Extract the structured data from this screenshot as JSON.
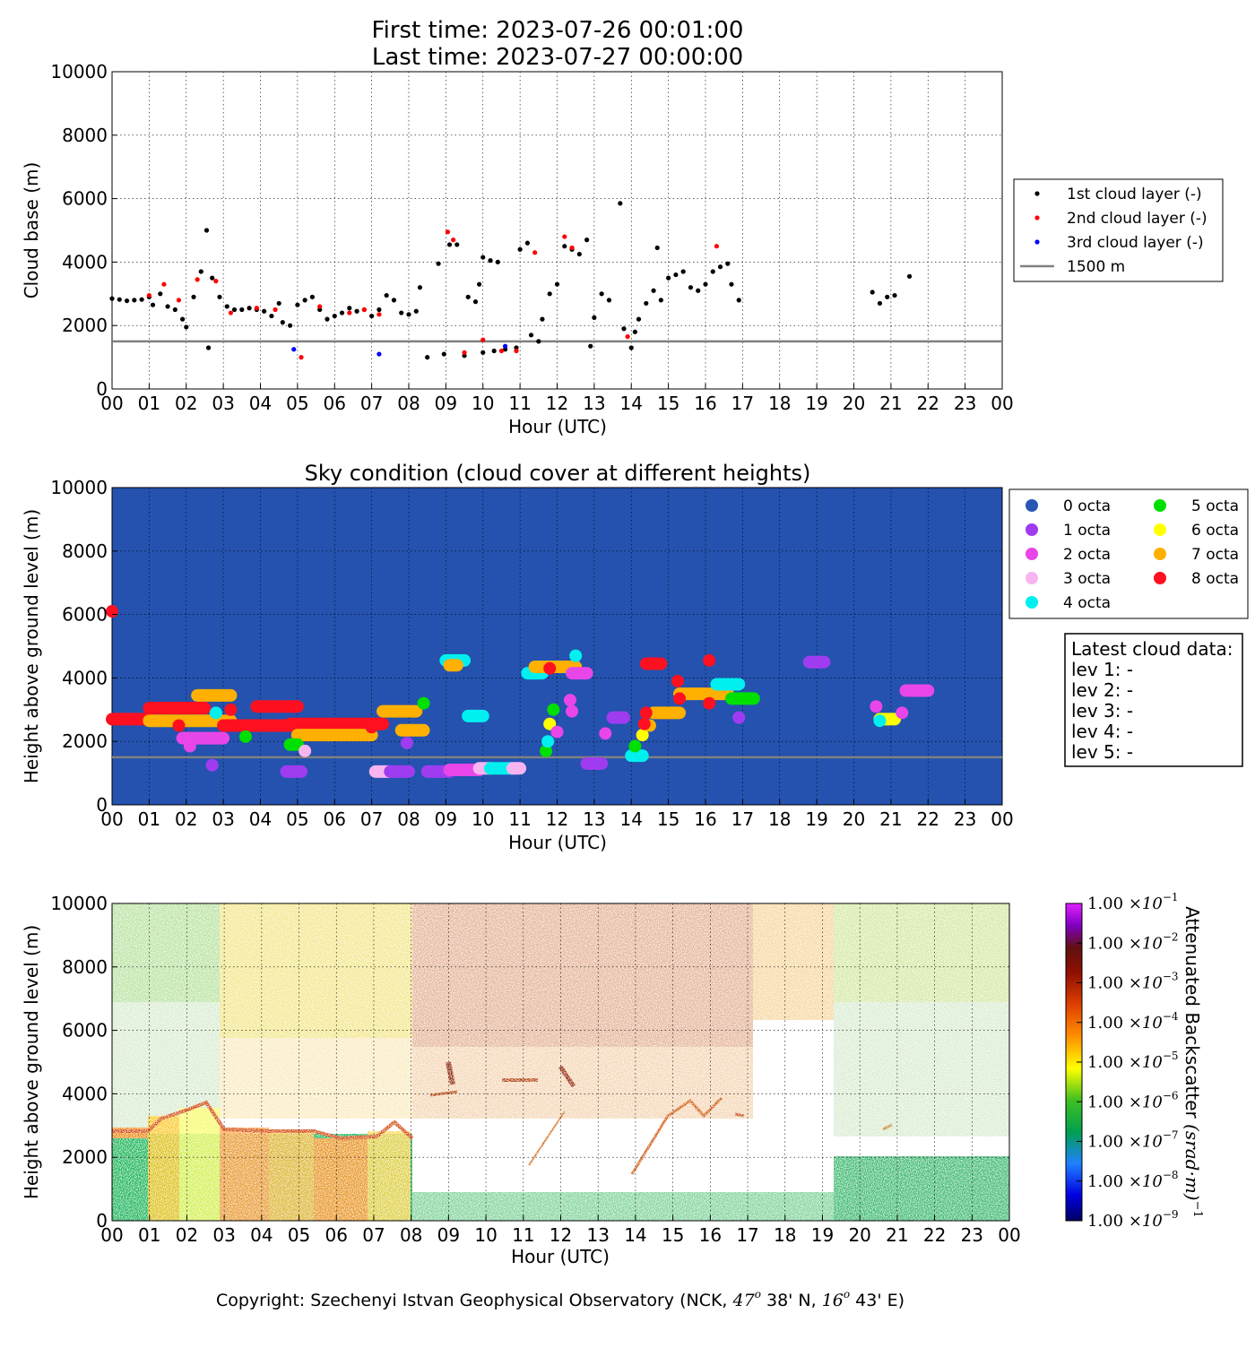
{
  "header": {
    "first_time": "First time: 2023-07-26 00:01:00",
    "last_time": "Last time: 2023-07-27 00:00:00"
  },
  "hour_ticks": [
    "00",
    "01",
    "02",
    "03",
    "04",
    "05",
    "06",
    "07",
    "08",
    "09",
    "10",
    "11",
    "12",
    "13",
    "14",
    "15",
    "16",
    "17",
    "18",
    "19",
    "20",
    "21",
    "22",
    "23",
    "00"
  ],
  "colors": {
    "layer1": "#000000",
    "layer2": "#ff0000",
    "layer3": "#0000ff",
    "ref_line": "#808080",
    "sky_bg": "#2452ae",
    "octa": [
      "#2756b4",
      "#a03cf0",
      "#e846e8",
      "#f8b4f0",
      "#00f0f0",
      "#00e000",
      "#ffff00",
      "#ffb000",
      "#ff1020"
    ]
  },
  "chart_data": [
    {
      "type": "scatter",
      "xlabel": "Hour (UTC)",
      "ylabel": "Cloud base (m)",
      "ylim": [
        0,
        10000
      ],
      "yticks": [
        "0",
        "2000",
        "4000",
        "6000",
        "8000",
        "10000"
      ],
      "grid": true,
      "legend_position": "right",
      "reference_line": {
        "name": "1500 m",
        "y": 1500
      },
      "series": [
        {
          "name": "1st cloud layer (-)",
          "points": [
            [
              0.0,
              2850
            ],
            [
              0.2,
              2820
            ],
            [
              0.4,
              2780
            ],
            [
              0.6,
              2800
            ],
            [
              0.8,
              2820
            ],
            [
              1.0,
              2900
            ],
            [
              1.1,
              2650
            ],
            [
              1.3,
              3000
            ],
            [
              1.5,
              2600
            ],
            [
              1.7,
              2500
            ],
            [
              1.9,
              2200
            ],
            [
              2.0,
              1950
            ],
            [
              2.2,
              2900
            ],
            [
              2.4,
              3700
            ],
            [
              2.55,
              5000
            ],
            [
              2.6,
              1300
            ],
            [
              2.7,
              3500
            ],
            [
              2.9,
              2900
            ],
            [
              3.1,
              2600
            ],
            [
              3.3,
              2500
            ],
            [
              3.5,
              2500
            ],
            [
              3.7,
              2550
            ],
            [
              3.9,
              2500
            ],
            [
              4.1,
              2450
            ],
            [
              4.3,
              2300
            ],
            [
              4.5,
              2700
            ],
            [
              4.6,
              2100
            ],
            [
              4.8,
              2000
            ],
            [
              5.0,
              2650
            ],
            [
              5.2,
              2800
            ],
            [
              5.4,
              2900
            ],
            [
              5.6,
              2500
            ],
            [
              5.8,
              2200
            ],
            [
              6.0,
              2300
            ],
            [
              6.2,
              2400
            ],
            [
              6.4,
              2550
            ],
            [
              6.6,
              2450
            ],
            [
              6.8,
              2500
            ],
            [
              7.0,
              2300
            ],
            [
              7.2,
              2500
            ],
            [
              7.4,
              2950
            ],
            [
              7.6,
              2800
            ],
            [
              7.8,
              2400
            ],
            [
              8.0,
              2350
            ],
            [
              8.2,
              2450
            ],
            [
              8.3,
              3200
            ],
            [
              8.5,
              1000
            ],
            [
              8.8,
              3950
            ],
            [
              8.95,
              1100
            ],
            [
              9.1,
              4550
            ],
            [
              9.3,
              4550
            ],
            [
              9.5,
              1050
            ],
            [
              9.6,
              2900
            ],
            [
              9.8,
              2750
            ],
            [
              9.9,
              3300
            ],
            [
              10.0,
              4150
            ],
            [
              10.2,
              4050
            ],
            [
              10.4,
              4000
            ],
            [
              10.0,
              1150
            ],
            [
              10.3,
              1200
            ],
            [
              10.6,
              1250
            ],
            [
              10.9,
              1300
            ],
            [
              11.0,
              4400
            ],
            [
              11.2,
              4600
            ],
            [
              11.3,
              1700
            ],
            [
              11.5,
              1500
            ],
            [
              11.6,
              2200
            ],
            [
              11.8,
              3000
            ],
            [
              12.0,
              3300
            ],
            [
              12.2,
              4500
            ],
            [
              12.4,
              4400
            ],
            [
              12.6,
              4250
            ],
            [
              12.8,
              4700
            ],
            [
              12.9,
              1350
            ],
            [
              13.0,
              2250
            ],
            [
              13.2,
              3000
            ],
            [
              13.4,
              2800
            ],
            [
              13.7,
              5850
            ],
            [
              13.8,
              1900
            ],
            [
              14.0,
              1300
            ],
            [
              14.1,
              1800
            ],
            [
              14.2,
              2200
            ],
            [
              14.4,
              2700
            ],
            [
              14.6,
              3100
            ],
            [
              14.7,
              4450
            ],
            [
              14.8,
              2800
            ],
            [
              15.0,
              3500
            ],
            [
              15.2,
              3600
            ],
            [
              15.4,
              3700
            ],
            [
              15.6,
              3200
            ],
            [
              15.8,
              3100
            ],
            [
              16.0,
              3300
            ],
            [
              16.2,
              3700
            ],
            [
              16.4,
              3850
            ],
            [
              16.6,
              3950
            ],
            [
              16.7,
              3300
            ],
            [
              16.9,
              2800
            ],
            [
              20.5,
              3050
            ],
            [
              20.7,
              2700
            ],
            [
              20.9,
              2900
            ],
            [
              21.1,
              2950
            ],
            [
              21.5,
              3550
            ]
          ]
        },
        {
          "name": "2nd cloud layer (-)",
          "points": [
            [
              1.0,
              2950
            ],
            [
              1.4,
              3300
            ],
            [
              1.8,
              2800
            ],
            [
              2.3,
              3450
            ],
            [
              2.8,
              3400
            ],
            [
              3.2,
              2400
            ],
            [
              3.9,
              2550
            ],
            [
              4.4,
              2500
            ],
            [
              5.1,
              1000
            ],
            [
              5.6,
              2600
            ],
            [
              6.4,
              2400
            ],
            [
              6.8,
              2500
            ],
            [
              7.2,
              2350
            ],
            [
              9.05,
              4950
            ],
            [
              9.2,
              4700
            ],
            [
              9.5,
              1150
            ],
            [
              10.0,
              1550
            ],
            [
              10.5,
              1200
            ],
            [
              10.9,
              1200
            ],
            [
              11.4,
              4300
            ],
            [
              12.2,
              4800
            ],
            [
              12.4,
              4450
            ],
            [
              13.9,
              1650
            ],
            [
              16.3,
              4500
            ]
          ]
        },
        {
          "name": "3rd cloud layer (-)",
          "points": [
            [
              4.9,
              1250
            ],
            [
              7.2,
              1100
            ],
            [
              10.6,
              1350
            ]
          ]
        }
      ]
    },
    {
      "type": "scatter",
      "title": "Sky condition (cloud cover at different heights)",
      "xlabel": "Hour (UTC)",
      "ylabel": "Height above ground level (m)",
      "ylim": [
        0,
        10000
      ],
      "yticks": [
        "0",
        "2000",
        "4000",
        "6000",
        "8000",
        "10000"
      ],
      "grid": true,
      "legend_position": "right",
      "legend": [
        "0 octa",
        "1 octa",
        "2 octa",
        "3 octa",
        "4 octa",
        "5 octa",
        "6 octa",
        "7 octa",
        "8 octa"
      ],
      "reference_line": {
        "y": 1500
      },
      "segments": [
        {
          "octa": 8,
          "x": [
            0.0,
            1.0
          ],
          "y": 2700
        },
        {
          "octa": 8,
          "x": [
            1.0,
            2.5
          ],
          "y": 3050
        },
        {
          "octa": 7,
          "x": [
            1.0,
            3.2
          ],
          "y": 2650
        },
        {
          "octa": 7,
          "x": [
            2.3,
            3.2
          ],
          "y": 3450
        },
        {
          "octa": 8,
          "x": [
            3.0,
            5.0
          ],
          "y": 2500
        },
        {
          "octa": 8,
          "x": [
            3.9,
            5.0
          ],
          "y": 3100
        },
        {
          "octa": 8,
          "x": [
            4.8,
            7.3
          ],
          "y": 2550
        },
        {
          "octa": 7,
          "x": [
            5.0,
            7.0
          ],
          "y": 2200
        },
        {
          "octa": 2,
          "x": [
            1.9,
            3.0
          ],
          "y": 2100
        },
        {
          "octa": 1,
          "x": [
            4.7,
            5.1
          ],
          "y": 1050
        },
        {
          "octa": 5,
          "x": [
            4.8,
            5.0
          ],
          "y": 1900
        },
        {
          "octa": 3,
          "x": [
            7.1,
            7.5
          ],
          "y": 1050
        },
        {
          "octa": 1,
          "x": [
            7.5,
            8.0
          ],
          "y": 1050
        },
        {
          "octa": 7,
          "x": [
            7.3,
            8.2
          ],
          "y": 2950
        },
        {
          "octa": 7,
          "x": [
            7.8,
            8.4
          ],
          "y": 2350
        },
        {
          "octa": 1,
          "x": [
            8.5,
            9.1
          ],
          "y": 1050
        },
        {
          "octa": 2,
          "x": [
            9.1,
            9.9
          ],
          "y": 1100
        },
        {
          "octa": 3,
          "x": [
            9.9,
            10.2
          ],
          "y": 1150
        },
        {
          "octa": 4,
          "x": [
            10.2,
            10.8
          ],
          "y": 1150
        },
        {
          "octa": 3,
          "x": [
            10.8,
            11.0
          ],
          "y": 1150
        },
        {
          "octa": 4,
          "x": [
            9.0,
            9.5
          ],
          "y": 4550
        },
        {
          "octa": 7,
          "x": [
            9.1,
            9.3
          ],
          "y": 4400
        },
        {
          "octa": 4,
          "x": [
            9.6,
            10.0
          ],
          "y": 2800
        },
        {
          "octa": 4,
          "x": [
            11.2,
            11.6
          ],
          "y": 4150
        },
        {
          "octa": 7,
          "x": [
            11.4,
            12.5
          ],
          "y": 4350
        },
        {
          "octa": 2,
          "x": [
            12.4,
            12.8
          ],
          "y": 4150
        },
        {
          "octa": 1,
          "x": [
            12.8,
            13.2
          ],
          "y": 1300
        },
        {
          "octa": 1,
          "x": [
            13.5,
            13.8
          ],
          "y": 2750
        },
        {
          "octa": 4,
          "x": [
            14.0,
            14.3
          ],
          "y": 1550
        },
        {
          "octa": 8,
          "x": [
            14.4,
            14.8
          ],
          "y": 4450
        },
        {
          "octa": 7,
          "x": [
            14.6,
            15.3
          ],
          "y": 2900
        },
        {
          "octa": 7,
          "x": [
            15.3,
            16.6
          ],
          "y": 3500
        },
        {
          "octa": 4,
          "x": [
            16.3,
            16.9
          ],
          "y": 3800
        },
        {
          "octa": 5,
          "x": [
            16.7,
            17.3
          ],
          "y": 3350
        },
        {
          "octa": 1,
          "x": [
            18.8,
            19.2
          ],
          "y": 4500
        },
        {
          "octa": 6,
          "x": [
            20.7,
            21.1
          ],
          "y": 2700
        },
        {
          "octa": 2,
          "x": [
            21.4,
            22.0
          ],
          "y": 3600
        }
      ],
      "points": [
        {
          "octa": 8,
          "x": 0.0,
          "y": 6100
        },
        {
          "octa": 8,
          "x": 1.8,
          "y": 2500
        },
        {
          "octa": 4,
          "x": 2.8,
          "y": 2900
        },
        {
          "octa": 8,
          "x": 3.2,
          "y": 3000
        },
        {
          "octa": 2,
          "x": 2.1,
          "y": 1850
        },
        {
          "octa": 1,
          "x": 2.7,
          "y": 1250
        },
        {
          "octa": 5,
          "x": 3.6,
          "y": 2150
        },
        {
          "octa": 3,
          "x": 5.2,
          "y": 1700
        },
        {
          "octa": 8,
          "x": 7.0,
          "y": 2450
        },
        {
          "octa": 5,
          "x": 8.4,
          "y": 3200
        },
        {
          "octa": 1,
          "x": 7.95,
          "y": 1950
        },
        {
          "octa": 5,
          "x": 11.7,
          "y": 1700
        },
        {
          "octa": 4,
          "x": 11.75,
          "y": 2000
        },
        {
          "octa": 6,
          "x": 11.8,
          "y": 2550
        },
        {
          "octa": 5,
          "x": 11.9,
          "y": 3000
        },
        {
          "octa": 2,
          "x": 12.0,
          "y": 2300
        },
        {
          "octa": 2,
          "x": 12.4,
          "y": 2950
        },
        {
          "octa": 2,
          "x": 12.35,
          "y": 3300
        },
        {
          "octa": 8,
          "x": 11.8,
          "y": 4300
        },
        {
          "octa": 4,
          "x": 12.5,
          "y": 4700
        },
        {
          "octa": 2,
          "x": 13.3,
          "y": 2250
        },
        {
          "octa": 5,
          "x": 14.1,
          "y": 1850
        },
        {
          "octa": 6,
          "x": 14.3,
          "y": 2200
        },
        {
          "octa": 7,
          "x": 14.5,
          "y": 2500
        },
        {
          "octa": 8,
          "x": 14.4,
          "y": 2900
        },
        {
          "octa": 8,
          "x": 14.35,
          "y": 2550
        },
        {
          "octa": 8,
          "x": 15.3,
          "y": 3350
        },
        {
          "octa": 8,
          "x": 15.25,
          "y": 3900
        },
        {
          "octa": 8,
          "x": 16.1,
          "y": 4550
        },
        {
          "octa": 8,
          "x": 16.1,
          "y": 3200
        },
        {
          "octa": 1,
          "x": 16.9,
          "y": 2750
        },
        {
          "octa": 2,
          "x": 20.6,
          "y": 3100
        },
        {
          "octa": 2,
          "x": 21.3,
          "y": 2900
        },
        {
          "octa": 4,
          "x": 20.7,
          "y": 2650
        }
      ]
    },
    {
      "type": "heatmap",
      "xlabel": "Hour (UTC)",
      "ylabel": "Height above ground level (m)",
      "ylim": [
        0,
        10000
      ],
      "yticks": [
        "0",
        "2000",
        "4000",
        "6000",
        "8000",
        "10000"
      ],
      "colorbar_label": "Attenuated Backscatter (srad·m)",
      "colorbar_ticks": [
        "1.00",
        "1.00",
        "1.00",
        "1.00",
        "1.00",
        "1.00",
        "1.00",
        "1.00",
        "1.00"
      ],
      "colorbar_exponents": [
        "-9",
        "-8",
        "-7",
        "-6",
        "-5",
        "-4",
        "-3",
        "-2",
        "-1"
      ],
      "colorbar_base": "×10",
      "colorbar_label_exponent": "−1"
    }
  ],
  "footer": {
    "copyright_prefix": "Copyright: Szechenyi Istvan Geophysical Observatory (NCK, ",
    "lat_deg": "47",
    "lat_min": " 38' N, ",
    "lon_deg": "16",
    "lon_min": " 43' E)",
    "deg_sign": "o"
  }
}
